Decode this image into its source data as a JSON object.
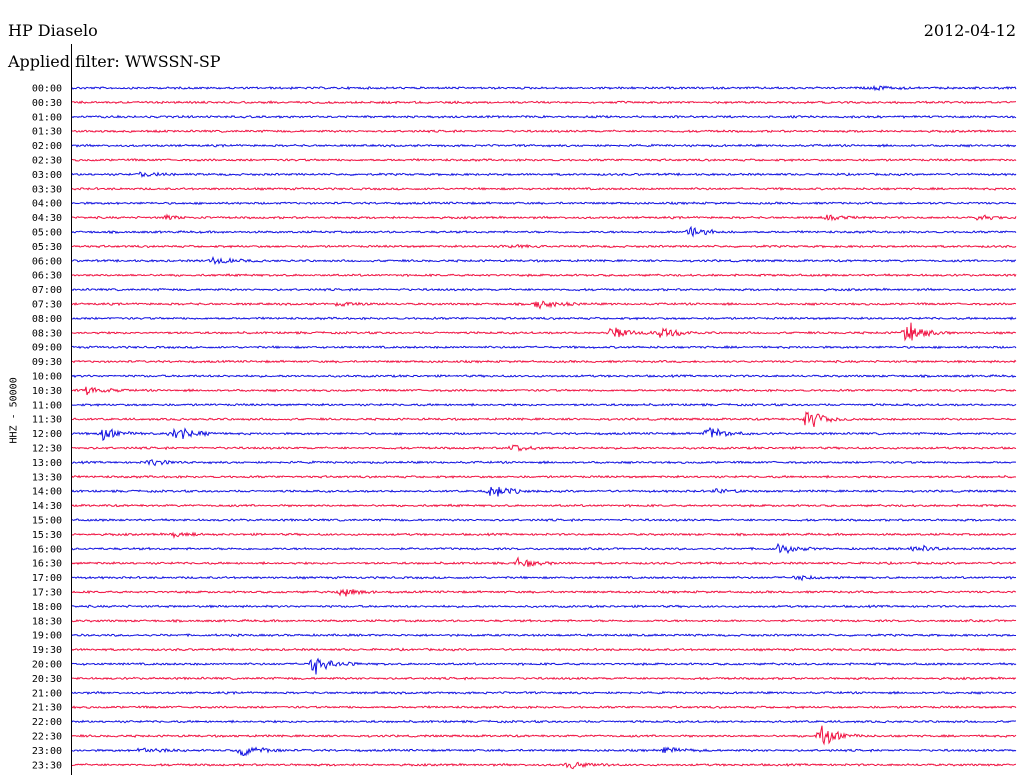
{
  "header": {
    "station": "HP Diaselo",
    "filter": "Applied filter: WWSSN-SP",
    "date": "2012-04-12"
  },
  "channel_label": "HHZ - 50000",
  "colors": {
    "blue": "#1010e0",
    "red": "#f01040"
  },
  "chart_data": {
    "type": "line",
    "title": "HP Diaselo",
    "subtitle": "Applied filter: WWSSN-SP",
    "ylabel": "HHZ - 50000",
    "row_labels": [
      "00:00",
      "00:30",
      "01:00",
      "01:30",
      "02:00",
      "02:30",
      "03:00",
      "03:30",
      "04:00",
      "04:30",
      "05:00",
      "05:30",
      "06:00",
      "06:30",
      "07:00",
      "07:30",
      "08:00",
      "08:30",
      "09:00",
      "09:30",
      "10:00",
      "10:30",
      "11:00",
      "11:30",
      "12:00",
      "12:30",
      "13:00",
      "13:30",
      "14:00",
      "14:30",
      "15:00",
      "15:30",
      "16:00",
      "16:30",
      "17:00",
      "17:30",
      "18:00",
      "18:30",
      "19:00",
      "19:30",
      "20:00",
      "20:30",
      "21:00",
      "21:30",
      "22:00",
      "22:30",
      "23:00",
      "23:30"
    ],
    "row_colors": [
      "blue",
      "red"
    ],
    "row_minutes": 30,
    "events": [
      {
        "row": "00:00",
        "minute": 25.5,
        "amplitude": 0.3
      },
      {
        "row": "03:00",
        "minute": 2.2,
        "amplitude": 0.35
      },
      {
        "row": "04:30",
        "minute": 3.0,
        "amplitude": 0.3
      },
      {
        "row": "04:30",
        "minute": 24.0,
        "amplitude": 0.3
      },
      {
        "row": "04:30",
        "minute": 28.8,
        "amplitude": 0.3
      },
      {
        "row": "05:00",
        "minute": 19.6,
        "amplitude": 0.9
      },
      {
        "row": "05:30",
        "minute": 13.8,
        "amplitude": 0.25
      },
      {
        "row": "06:00",
        "minute": 4.5,
        "amplitude": 0.55
      },
      {
        "row": "07:30",
        "minute": 8.5,
        "amplitude": 0.3
      },
      {
        "row": "07:30",
        "minute": 14.8,
        "amplitude": 0.8
      },
      {
        "row": "08:30",
        "minute": 17.2,
        "amplitude": 1.0
      },
      {
        "row": "08:30",
        "minute": 18.7,
        "amplitude": 0.9
      },
      {
        "row": "08:30",
        "minute": 26.5,
        "amplitude": 1.6
      },
      {
        "row": "10:30",
        "minute": 0.5,
        "amplitude": 0.6
      },
      {
        "row": "11:30",
        "minute": 23.4,
        "amplitude": 1.4
      },
      {
        "row": "12:00",
        "minute": 1.0,
        "amplitude": 0.8
      },
      {
        "row": "12:00",
        "minute": 3.2,
        "amplitude": 1.3
      },
      {
        "row": "12:00",
        "minute": 20.2,
        "amplitude": 1.0
      },
      {
        "row": "12:30",
        "minute": 14.0,
        "amplitude": 0.5
      },
      {
        "row": "13:00",
        "minute": 2.5,
        "amplitude": 0.5
      },
      {
        "row": "14:00",
        "minute": 13.3,
        "amplitude": 1.0
      },
      {
        "row": "14:00",
        "minute": 20.5,
        "amplitude": 0.3
      },
      {
        "row": "15:30",
        "minute": 3.3,
        "amplitude": 0.3
      },
      {
        "row": "16:00",
        "minute": 22.5,
        "amplitude": 0.7
      },
      {
        "row": "16:00",
        "minute": 26.8,
        "amplitude": 0.6
      },
      {
        "row": "16:30",
        "minute": 14.2,
        "amplitude": 0.6
      },
      {
        "row": "17:00",
        "minute": 23.0,
        "amplitude": 0.35
      },
      {
        "row": "17:30",
        "minute": 8.6,
        "amplitude": 0.6
      },
      {
        "row": "20:00",
        "minute": 7.7,
        "amplitude": 1.4
      },
      {
        "row": "22:30",
        "minute": 23.8,
        "amplitude": 1.4
      },
      {
        "row": "23:00",
        "minute": 2.2,
        "amplitude": 0.5
      },
      {
        "row": "23:00",
        "minute": 5.4,
        "amplitude": 1.0
      },
      {
        "row": "23:00",
        "minute": 18.9,
        "amplitude": 0.45
      },
      {
        "row": "23:30",
        "minute": 15.8,
        "amplitude": 0.55
      }
    ]
  }
}
